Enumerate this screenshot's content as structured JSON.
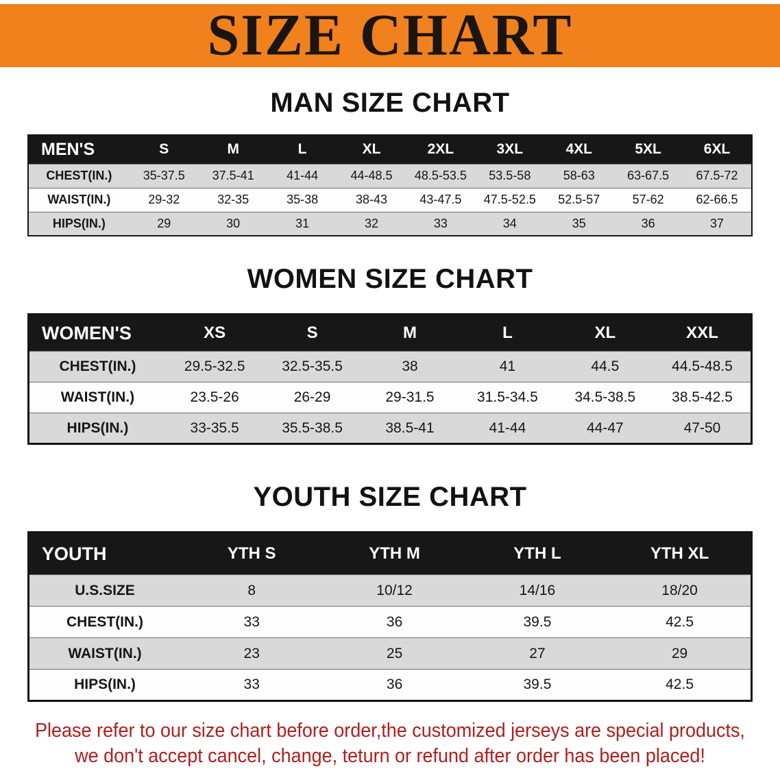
{
  "banner": {
    "title": "SIZE CHART",
    "background_color": "#F0811D"
  },
  "colors": {
    "banner_orange": "#F0811D",
    "table_header_black": "#171717",
    "row_stripe_gray": "#D9D9D9",
    "note_red": "#B01E1C"
  },
  "sections": [
    {
      "title": "MAN SIZE CHART",
      "table": {
        "header": [
          "MEN'S",
          "S",
          "M",
          "L",
          "XL",
          "2XL",
          "3XL",
          "4XL",
          "5XL",
          "6XL"
        ],
        "rows": [
          [
            "CHEST(IN.)",
            "35-37.5",
            "37.5-41",
            "41-44",
            "44-48.5",
            "48.5-53.5",
            "53.5-58",
            "58-63",
            "63-67.5",
            "67.5-72"
          ],
          [
            "WAIST(IN.)",
            "29-32",
            "32-35",
            "35-38",
            "38-43",
            "43-47.5",
            "47.5-52.5",
            "52.5-57",
            "57-62",
            "62-66.5"
          ],
          [
            "HIPS(IN.)",
            "29",
            "30",
            "31",
            "32",
            "33",
            "34",
            "35",
            "36",
            "37"
          ]
        ]
      }
    },
    {
      "title": "WOMEN SIZE CHART",
      "table": {
        "header": [
          "WOMEN'S",
          "XS",
          "S",
          "M",
          "L",
          "XL",
          "XXL"
        ],
        "rows": [
          [
            "CHEST(IN.)",
            "29.5-32.5",
            "32.5-35.5",
            "38",
            "41",
            "44.5",
            "44.5-48.5"
          ],
          [
            "WAIST(IN.)",
            "23.5-26",
            "26-29",
            "29-31.5",
            "31.5-34.5",
            "34.5-38.5",
            "38.5-42.5"
          ],
          [
            "HIPS(IN.)",
            "33-35.5",
            "35.5-38.5",
            "38.5-41",
            "41-44",
            "44-47",
            "47-50"
          ]
        ]
      }
    },
    {
      "title": "YOUTH SIZE CHART",
      "table": {
        "header": [
          "YOUTH",
          "YTH S",
          "YTH M",
          "YTH L",
          "YTH XL"
        ],
        "rows": [
          [
            "U.S.SIZE",
            "8",
            "10/12",
            "14/16",
            "18/20"
          ],
          [
            "CHEST(IN.)",
            "33",
            "36",
            "39.5",
            "42.5"
          ],
          [
            "WAIST(IN.)",
            "23",
            "25",
            "27",
            "29"
          ],
          [
            "HIPS(IN.)",
            "33",
            "36",
            "39.5",
            "42.5"
          ]
        ]
      }
    }
  ],
  "footer": {
    "line1": "Please refer to our size chart before order,the customized jerseys are special products,",
    "line2": "we don't accept cancel, change, teturn or refund after order has been placed!",
    "text_color": "#B01E1C"
  },
  "chart_data": [
    {
      "type": "table",
      "title": "MAN SIZE CHART",
      "columns": [
        "MEN'S",
        "S",
        "M",
        "L",
        "XL",
        "2XL",
        "3XL",
        "4XL",
        "5XL",
        "6XL"
      ],
      "rows": [
        [
          "CHEST(IN.)",
          "35-37.5",
          "37.5-41",
          "41-44",
          "44-48.5",
          "48.5-53.5",
          "53.5-58",
          "58-63",
          "63-67.5",
          "67.5-72"
        ],
        [
          "WAIST(IN.)",
          "29-32",
          "32-35",
          "35-38",
          "38-43",
          "43-47.5",
          "47.5-52.5",
          "52.5-57",
          "57-62",
          "62-66.5"
        ],
        [
          "HIPS(IN.)",
          "29",
          "30",
          "31",
          "32",
          "33",
          "34",
          "35",
          "36",
          "37"
        ]
      ]
    },
    {
      "type": "table",
      "title": "WOMEN SIZE CHART",
      "columns": [
        "WOMEN'S",
        "XS",
        "S",
        "M",
        "L",
        "XL",
        "XXL"
      ],
      "rows": [
        [
          "CHEST(IN.)",
          "29.5-32.5",
          "32.5-35.5",
          "38",
          "41",
          "44.5",
          "44.5-48.5"
        ],
        [
          "WAIST(IN.)",
          "23.5-26",
          "26-29",
          "29-31.5",
          "31.5-34.5",
          "34.5-38.5",
          "38.5-42.5"
        ],
        [
          "HIPS(IN.)",
          "33-35.5",
          "35.5-38.5",
          "38.5-41",
          "41-44",
          "44-47",
          "47-50"
        ]
      ]
    },
    {
      "type": "table",
      "title": "YOUTH SIZE CHART",
      "columns": [
        "YOUTH",
        "YTH S",
        "YTH M",
        "YTH L",
        "YTH XL"
      ],
      "rows": [
        [
          "U.S.SIZE",
          "8",
          "10/12",
          "14/16",
          "18/20"
        ],
        [
          "CHEST(IN.)",
          "33",
          "36",
          "39.5",
          "42.5"
        ],
        [
          "WAIST(IN.)",
          "23",
          "25",
          "27",
          "29"
        ],
        [
          "HIPS(IN.)",
          "33",
          "36",
          "39.5",
          "42.5"
        ]
      ]
    }
  ]
}
